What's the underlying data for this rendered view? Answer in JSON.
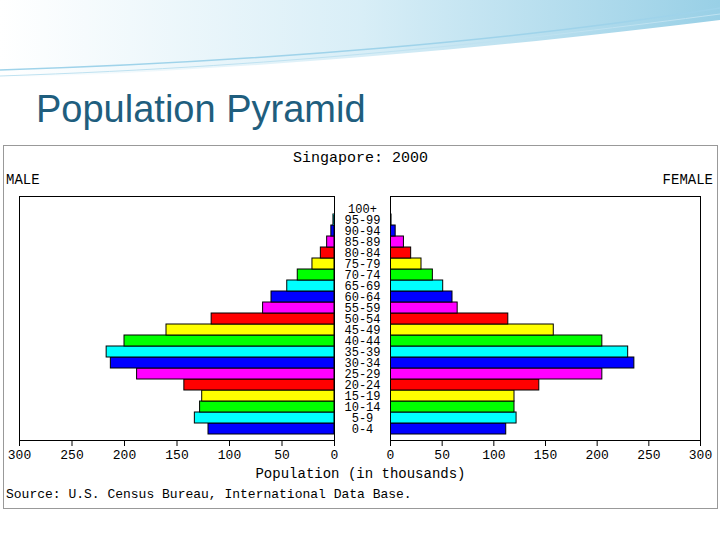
{
  "heading": "Population Pyramid",
  "chart_data": {
    "type": "bar",
    "orientation": "horizontal",
    "title": "Singapore: 2000",
    "x_label": "Population (in thousands)",
    "source": "Source: U.S. Census Bureau, International Data Base.",
    "categories": [
      "0-4",
      "5-9",
      "10-14",
      "15-19",
      "20-24",
      "25-29",
      "30-34",
      "35-39",
      "40-44",
      "45-49",
      "50-54",
      "55-59",
      "60-64",
      "65-69",
      "70-74",
      "75-79",
      "80-84",
      "85-89",
      "90-94",
      "95-99",
      "100+"
    ],
    "colors": [
      "#0000ff",
      "#00ffff",
      "#00ff00",
      "#ffff00",
      "#ff0000",
      "#ff00ff",
      "#0000ff",
      "#00ffff",
      "#00ff00",
      "#ffff00",
      "#ff0000",
      "#ff00ff",
      "#0000ff",
      "#00ffff",
      "#00ff00",
      "#ffff00",
      "#ff0000",
      "#ff00ff",
      "#0000ff",
      "#00ffff",
      "#00ff00"
    ],
    "series": [
      {
        "name": "MALE",
        "values": [
          120,
          133,
          128,
          126,
          143,
          188,
          213,
          217,
          200,
          160,
          117,
          68,
          60,
          45,
          35,
          21,
          13,
          7,
          3,
          1,
          0
        ]
      },
      {
        "name": "FEMALE",
        "values": [
          112,
          122,
          120,
          120,
          144,
          205,
          236,
          230,
          205,
          158,
          114,
          65,
          60,
          51,
          41,
          30,
          20,
          13,
          5,
          1,
          0
        ]
      }
    ],
    "xlim": [
      0,
      300
    ],
    "xticks": [
      0,
      50,
      100,
      150,
      200,
      250,
      300
    ],
    "grid": false
  }
}
